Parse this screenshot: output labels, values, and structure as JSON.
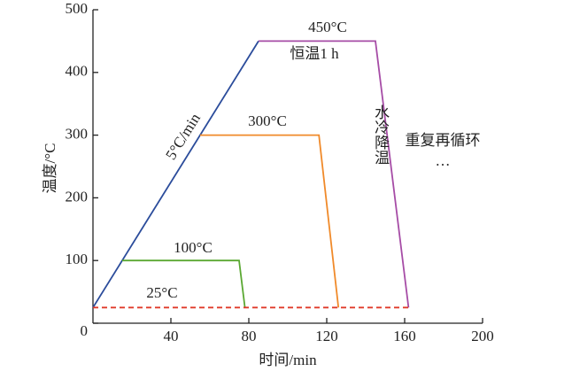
{
  "chart_data": {
    "type": "line",
    "xlabel": "时间/min",
    "ylabel": "温度/°C",
    "xlim": [
      0,
      200
    ],
    "ylim": [
      0,
      500
    ],
    "xticks": [
      40,
      80,
      120,
      160,
      200
    ],
    "yticks": [
      0,
      100,
      200,
      300,
      400,
      500
    ],
    "series": [
      {
        "color": "#2b4c9b",
        "x": [
          0,
          85
        ],
        "values": [
          25,
          450
        ]
      },
      {
        "color": "#a64ca6",
        "x": [
          85,
          145,
          162
        ],
        "values": [
          450,
          450,
          25
        ]
      },
      {
        "color": "#f08a2a",
        "x": [
          55,
          116,
          126
        ],
        "values": [
          300,
          300,
          25
        ]
      },
      {
        "color": "#5aa832",
        "x": [
          15,
          75,
          78
        ],
        "values": [
          100,
          100,
          25
        ]
      },
      {
        "color": "#e03a2a",
        "dashed": true,
        "x": [
          0,
          162
        ],
        "values": [
          25,
          25
        ]
      }
    ],
    "annotations": [
      "450°C",
      "恒温1 h",
      "300°C",
      "100°C",
      "25°C",
      "5°C/min",
      "水冷降温",
      "重复再循环",
      "…"
    ]
  }
}
